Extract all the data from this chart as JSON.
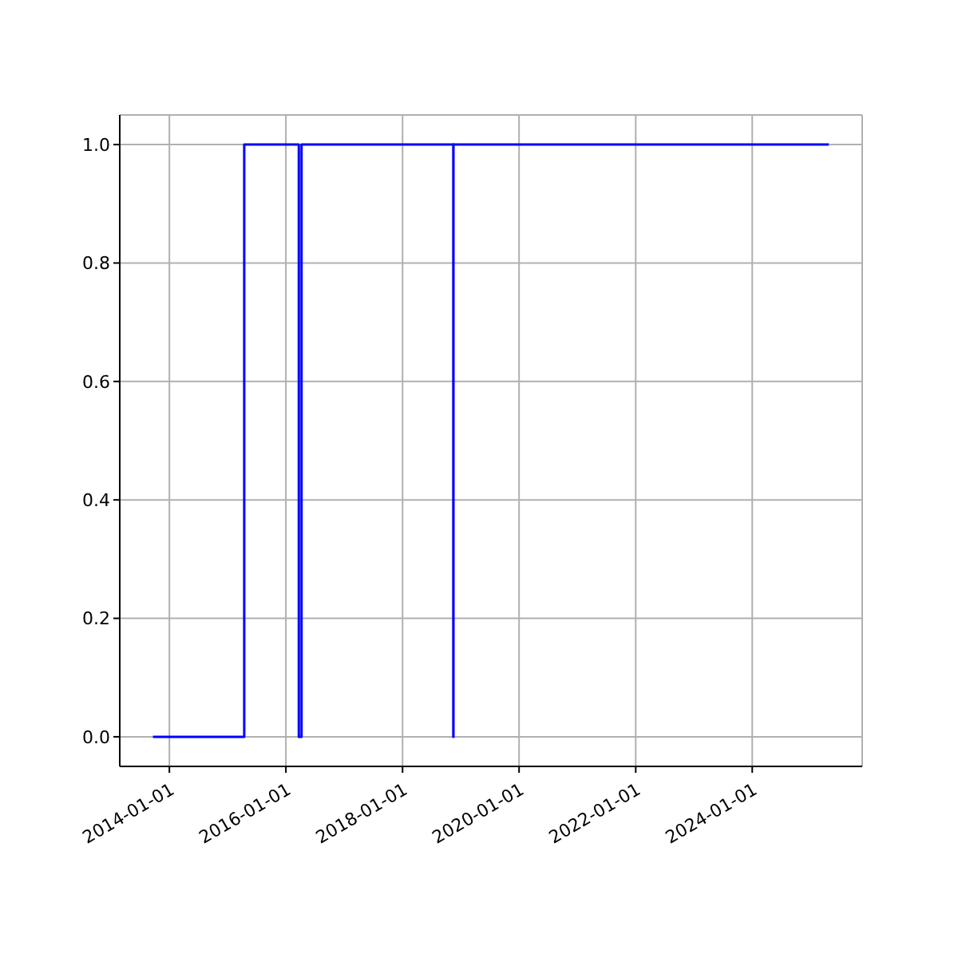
{
  "chart_data": {
    "type": "step",
    "x": [
      "2013-09-20",
      "2015-04-15",
      "2016-03-22",
      "2016-04-08",
      "2018-11-15",
      "2018-11-16",
      "2025-04-25"
    ],
    "series": [
      {
        "color": "#0000ff",
        "values": [
          0,
          1,
          0,
          1,
          0,
          1,
          1
        ]
      }
    ],
    "xlim": [
      "2013-02-24",
      "2025-11-20"
    ],
    "xticks": [
      "2014-01-01",
      "2016-01-01",
      "2018-01-01",
      "2020-01-01",
      "2022-01-01",
      "2024-01-01"
    ],
    "ylim": [
      -0.05,
      1.05
    ],
    "yticks": [
      {
        "value": 0,
        "label": "0.0"
      },
      {
        "value": 0.2,
        "label": "0.2"
      },
      {
        "value": 0.4,
        "label": "0.4"
      },
      {
        "value": 0.6,
        "label": "0.6"
      },
      {
        "value": 0.8,
        "label": "0.8"
      },
      {
        "value": 1,
        "label": "1.0"
      }
    ],
    "grid": true,
    "marker": "none",
    "line_style": "solid"
  }
}
